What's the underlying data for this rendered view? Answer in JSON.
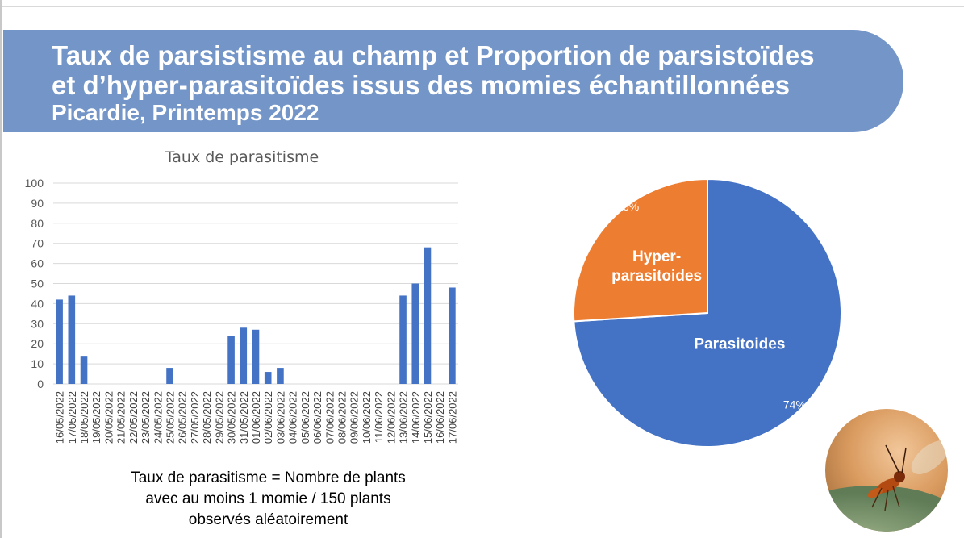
{
  "title_line1": "Taux de parsistisme au champ et Proportion de parsistoïdes",
  "title_line2": "et d’hyper-parasitoïdes issus des momies échantillonnées",
  "subtitle": "Picardie, Printemps 2022",
  "caption": {
    "line1": "Taux de parasitisme = Nombre de plants",
    "line2": "avec au moins 1 momie / 150 plants",
    "line3": "observés aléatoirement"
  },
  "colors": {
    "banner": "#7395c7",
    "bar": "#4472c4",
    "pie_parasitoides": "#4472c4",
    "pie_hyper": "#ed7d31"
  },
  "chart_data": [
    {
      "type": "bar",
      "title": "Taux de parasitisme",
      "categories": [
        "16/05/2022",
        "17/05/2022",
        "18/05/2022",
        "19/05/2022",
        "20/05/2022",
        "21/05/2022",
        "22/05/2022",
        "23/05/2022",
        "24/05/2022",
        "25/05/2022",
        "26/05/2022",
        "27/05/2022",
        "28/05/2022",
        "29/05/2022",
        "30/05/2022",
        "31/05/2022",
        "01/06/2022",
        "02/06/2022",
        "03/06/2022",
        "04/06/2022",
        "05/06/2022",
        "06/06/2022",
        "07/06/2022",
        "08/06/2022",
        "09/06/2022",
        "10/06/2022",
        "11/06/2022",
        "12/06/2022",
        "13/06/2022",
        "14/06/2022",
        "15/06/2022",
        "16/06/2022",
        "17/06/2022"
      ],
      "values": [
        42,
        44,
        14,
        0,
        0,
        0,
        0,
        0,
        0,
        8,
        0,
        0,
        0,
        0,
        24,
        28,
        27,
        6,
        8,
        0,
        0,
        0,
        0,
        0,
        0,
        0,
        0,
        0,
        44,
        50,
        68,
        0,
        48
      ],
      "ylim": [
        0,
        100
      ],
      "yticks": [
        0,
        10,
        20,
        30,
        40,
        50,
        60,
        70,
        80,
        90,
        100
      ],
      "grid": true,
      "xlabel": "",
      "ylabel": ""
    },
    {
      "type": "pie",
      "labels": [
        "Parasitoides",
        "Hyper-\nparasitoides"
      ],
      "values": [
        74,
        26
      ],
      "value_labels": [
        "74%",
        "26%"
      ]
    }
  ]
}
